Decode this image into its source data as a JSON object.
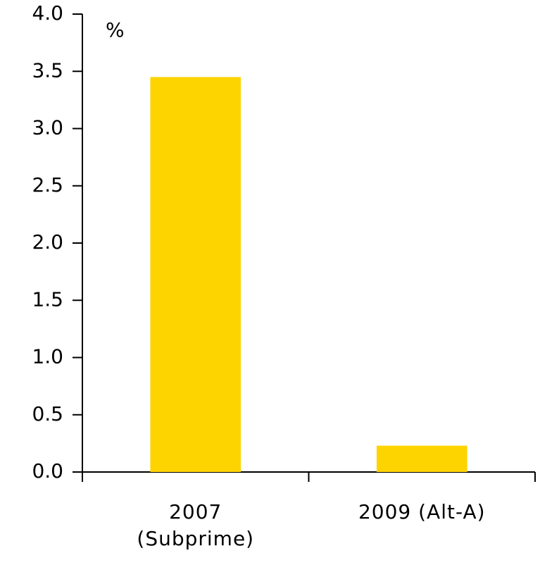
{
  "chart_data": {
    "type": "bar",
    "y_label": "%",
    "categories": [
      "2007\n(Subprime)",
      "2009 (Alt-A)"
    ],
    "values": [
      3.45,
      0.23
    ],
    "color": "#FDD300",
    "ylim": [
      0,
      4
    ],
    "yticks": [
      {
        "value": 0,
        "label": "0.0"
      },
      {
        "value": 0.5,
        "label": "0.5"
      },
      {
        "value": 1,
        "label": "1.0"
      },
      {
        "value": 1.5,
        "label": "1.5"
      },
      {
        "value": 2,
        "label": "2.0"
      },
      {
        "value": 2.5,
        "label": "2.5"
      },
      {
        "value": 3,
        "label": "3.0"
      },
      {
        "value": 3.5,
        "label": "3.5"
      },
      {
        "value": 4,
        "label": "4.0"
      }
    ]
  }
}
